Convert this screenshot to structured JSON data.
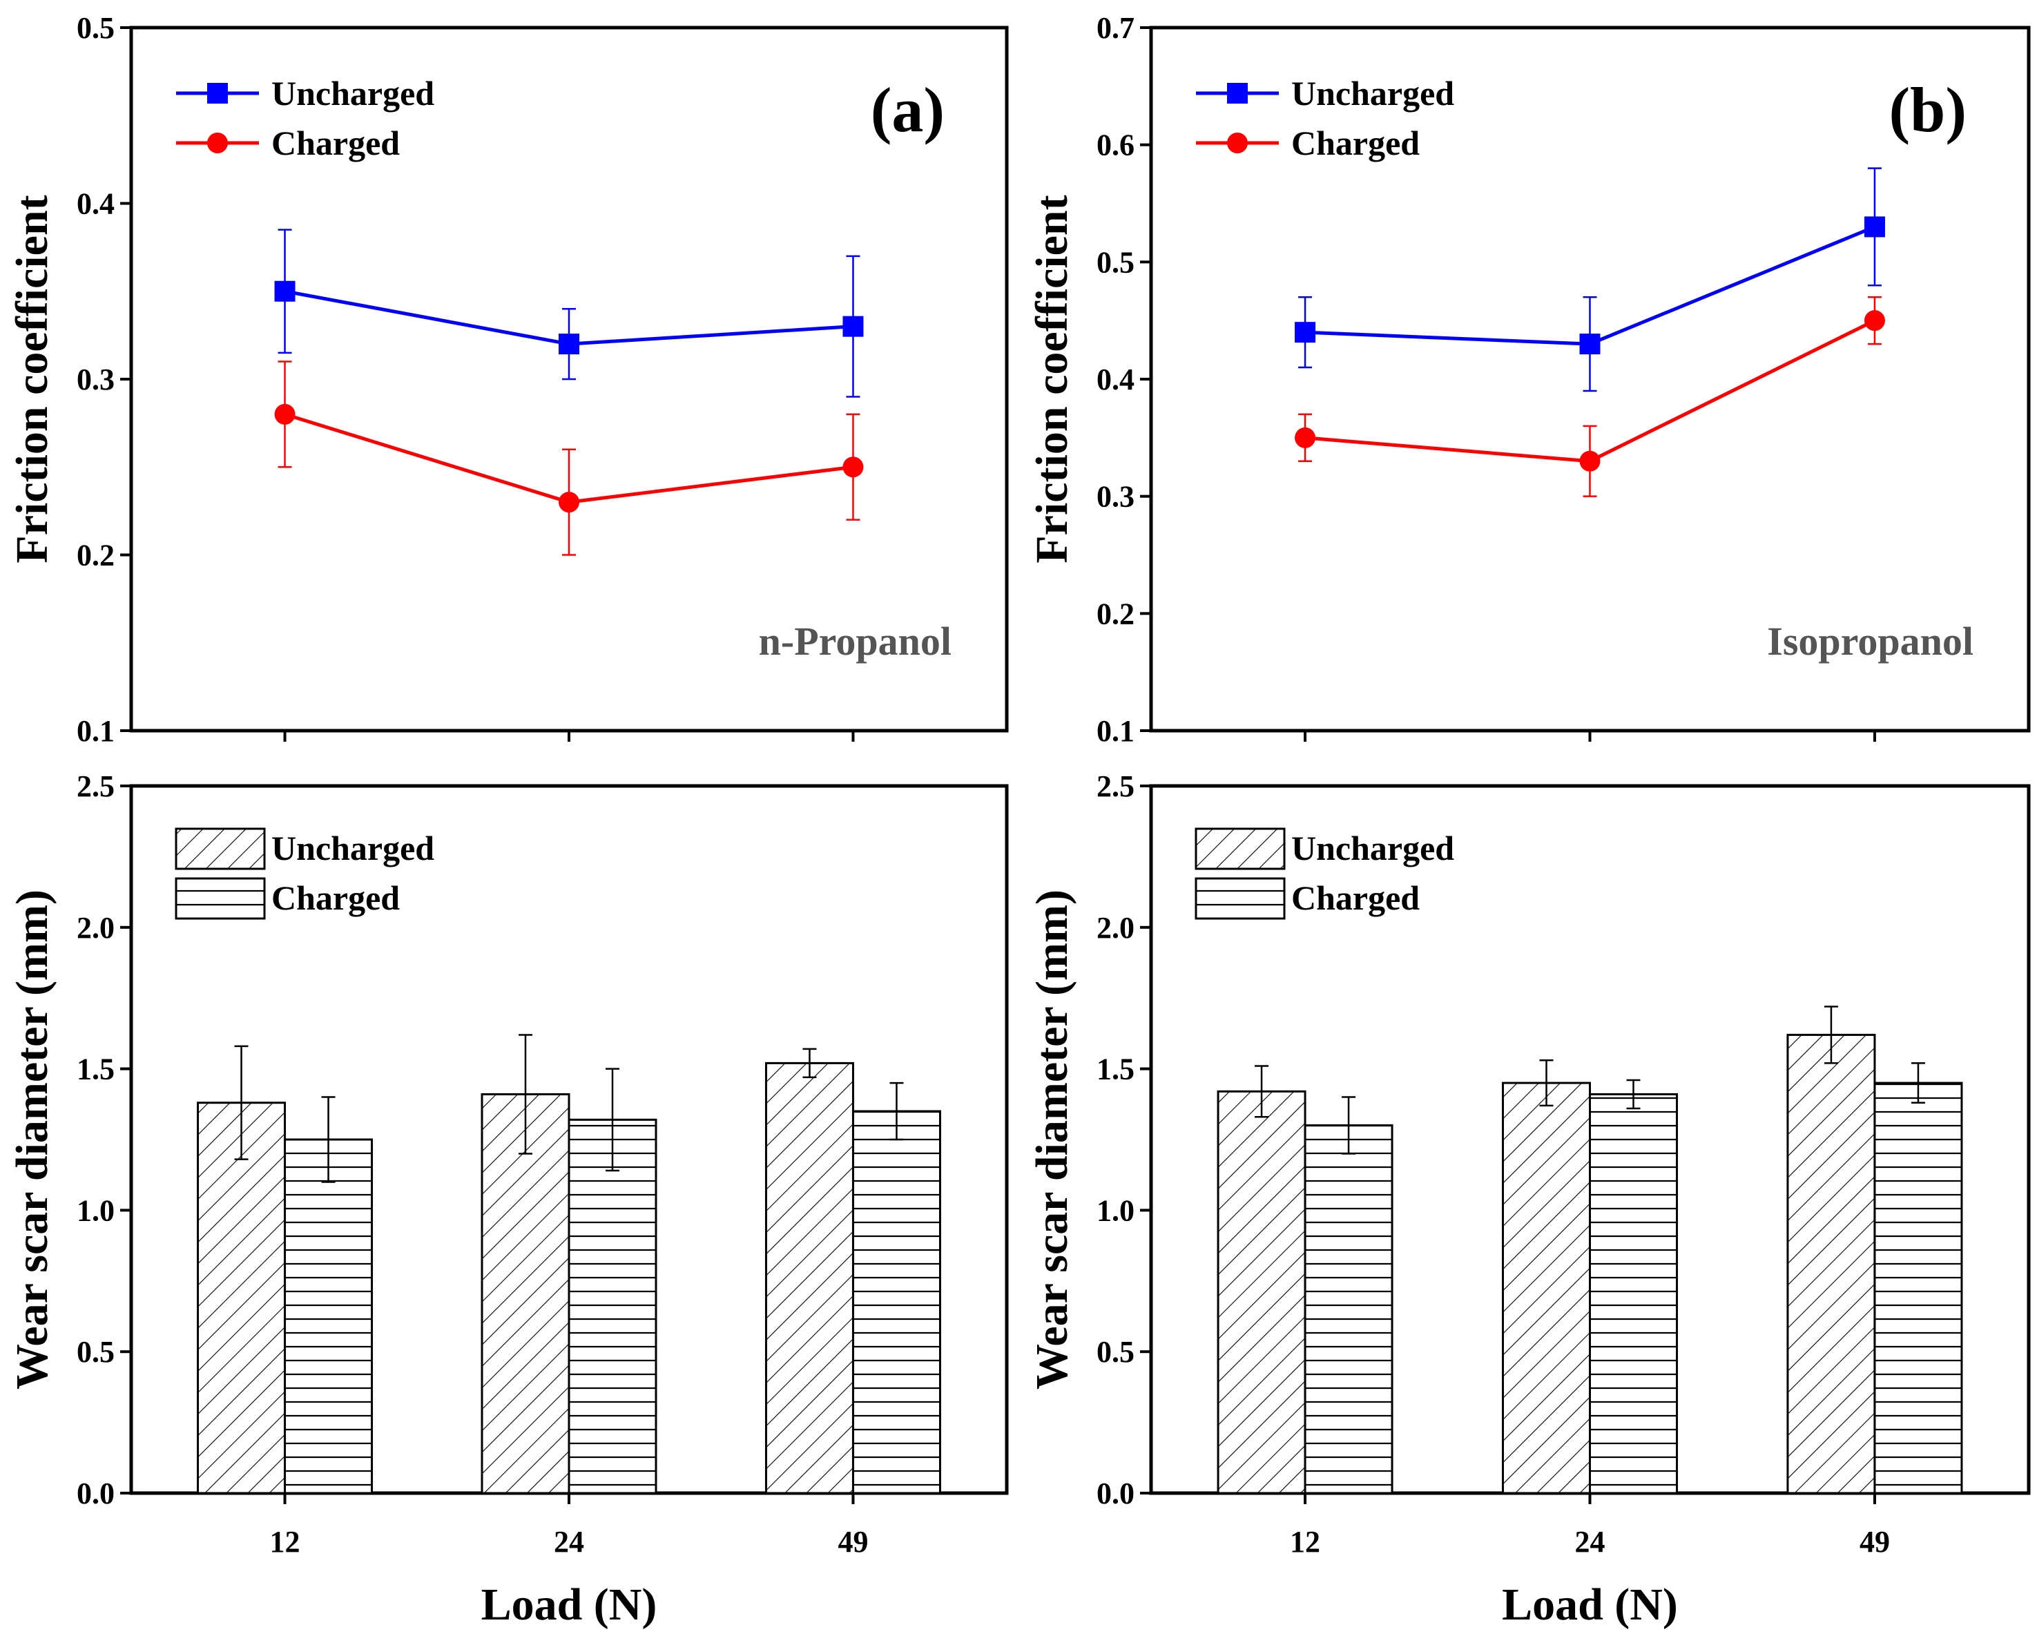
{
  "chart_data": [
    {
      "id": "a-top",
      "type": "line",
      "panel_label": "(a)",
      "annotation": "n-Propanol",
      "ylabel": "Friction coefficient",
      "ylim": [
        0.1,
        0.5
      ],
      "yticks": [
        "0.1",
        "0.2",
        "0.3",
        "0.4",
        "0.5"
      ],
      "categories": [
        "12",
        "24",
        "49"
      ],
      "series": [
        {
          "name": "Uncharged",
          "color": "#0000ff",
          "marker": "square",
          "values": [
            0.35,
            0.32,
            0.33
          ],
          "errors": [
            0.035,
            0.02,
            0.04
          ]
        },
        {
          "name": "Charged",
          "color": "#ff0000",
          "marker": "circle",
          "values": [
            0.28,
            0.23,
            0.25
          ],
          "errors": [
            0.03,
            0.03,
            0.03
          ]
        }
      ]
    },
    {
      "id": "b-top",
      "type": "line",
      "panel_label": "(b)",
      "annotation": "Isopropanol",
      "ylabel": "Friction coefficient",
      "ylim": [
        0.1,
        0.7
      ],
      "yticks": [
        "0.1",
        "0.2",
        "0.3",
        "0.4",
        "0.5",
        "0.6",
        "0.7"
      ],
      "categories": [
        "12",
        "24",
        "49"
      ],
      "series": [
        {
          "name": "Uncharged",
          "color": "#0000ff",
          "marker": "square",
          "values": [
            0.44,
            0.43,
            0.53
          ],
          "errors": [
            0.03,
            0.04,
            0.05
          ]
        },
        {
          "name": "Charged",
          "color": "#ff0000",
          "marker": "circle",
          "values": [
            0.35,
            0.33,
            0.45
          ],
          "errors": [
            0.02,
            0.03,
            0.02
          ]
        }
      ]
    },
    {
      "id": "a-bottom",
      "type": "bar",
      "ylabel": "Wear scar diameter (mm)",
      "xlabel": "Load (N)",
      "ylim": [
        0.0,
        2.5
      ],
      "yticks": [
        "0.0",
        "0.5",
        "1.0",
        "1.5",
        "2.0",
        "2.5"
      ],
      "categories": [
        "12",
        "24",
        "49"
      ],
      "series": [
        {
          "name": "Uncharged",
          "pattern": "diagonal-hatch",
          "values": [
            1.38,
            1.41,
            1.52
          ],
          "errors": [
            0.2,
            0.21,
            0.05
          ]
        },
        {
          "name": "Charged",
          "pattern": "horizontal-lines",
          "values": [
            1.25,
            1.32,
            1.35
          ],
          "errors": [
            0.15,
            0.18,
            0.1
          ]
        }
      ]
    },
    {
      "id": "b-bottom",
      "type": "bar",
      "ylabel": "Wear scar diameter (mm)",
      "xlabel": "Load (N)",
      "ylim": [
        0.0,
        2.5
      ],
      "yticks": [
        "0.0",
        "0.5",
        "1.0",
        "1.5",
        "2.0",
        "2.5"
      ],
      "categories": [
        "12",
        "24",
        "49"
      ],
      "series": [
        {
          "name": "Uncharged",
          "pattern": "diagonal-hatch",
          "values": [
            1.42,
            1.45,
            1.62
          ],
          "errors": [
            0.09,
            0.08,
            0.1
          ]
        },
        {
          "name": "Charged",
          "pattern": "horizontal-lines",
          "values": [
            1.3,
            1.41,
            1.45
          ],
          "errors": [
            0.1,
            0.05,
            0.07
          ]
        }
      ]
    }
  ]
}
